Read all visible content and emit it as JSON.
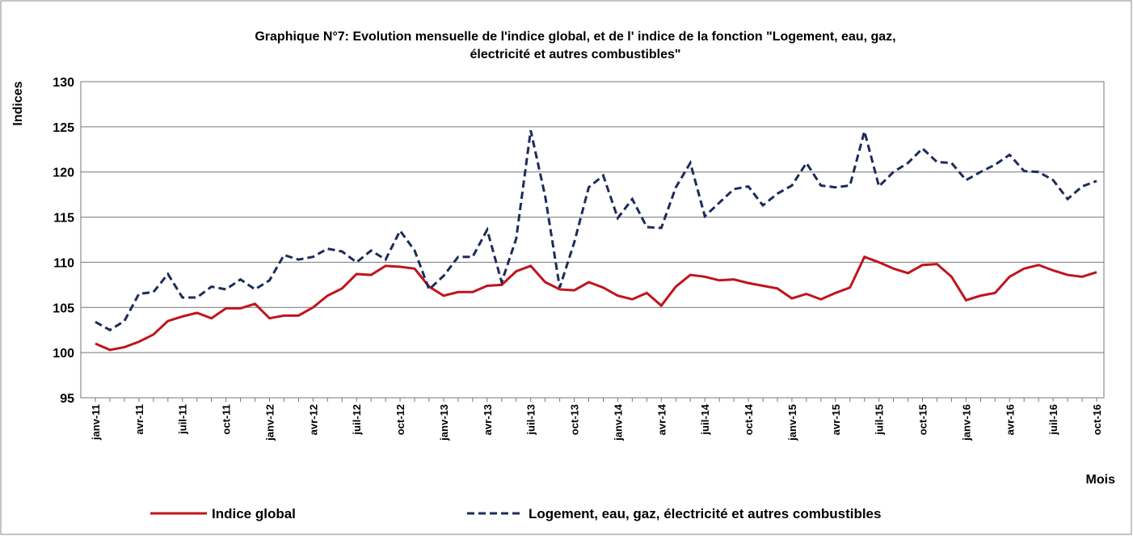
{
  "chart_data": {
    "type": "line",
    "title": "Graphique N°7: Evolution  mensuelle de l'indice global,  et de l' indice de la  fonction \"Logement, eau, gaz,",
    "subtitle": "électricité et autres combustibles\"",
    "y_label": "Indices",
    "x_label": "Mois",
    "categories": [
      "janv-11",
      null,
      null,
      "avr-11",
      null,
      null,
      "juil-11",
      null,
      null,
      "oct-11",
      null,
      null,
      "janv-12",
      null,
      null,
      "avr-12",
      null,
      null,
      "juil-12",
      null,
      null,
      "oct-12",
      null,
      null,
      "janv-13",
      null,
      null,
      "avr-13",
      null,
      null,
      "juil-13",
      null,
      null,
      "oct-13",
      null,
      null,
      "janv-14",
      null,
      null,
      "avr-14",
      null,
      null,
      "juil-14",
      null,
      null,
      "oct-14",
      null,
      null,
      "janv-15",
      null,
      null,
      "avr-15",
      null,
      null,
      "juil-15",
      null,
      null,
      "oct-15",
      null,
      null,
      "janv-16",
      null,
      null,
      "avr-16",
      null,
      null,
      "juil-16",
      null,
      null,
      "oct-16"
    ],
    "series": [
      {
        "name": "Indice global",
        "color": "#c0141c",
        "dashed": false,
        "values": [
          101.0,
          100.3,
          100.6,
          101.2,
          102.0,
          103.5,
          104.0,
          104.4,
          103.8,
          104.9,
          104.9,
          105.4,
          103.8,
          104.1,
          104.1,
          105.0,
          106.3,
          107.1,
          108.7,
          108.6,
          109.6,
          109.5,
          109.3,
          107.3,
          106.3,
          106.7,
          106.7,
          107.4,
          107.5,
          109.0,
          109.6,
          107.8,
          107.0,
          106.9,
          107.8,
          107.2,
          106.3,
          105.9,
          106.6,
          105.2,
          107.3,
          108.6,
          108.4,
          108.0,
          108.1,
          107.7,
          107.4,
          107.1,
          106.0,
          106.5,
          105.9,
          106.6,
          107.2,
          110.6,
          110.0,
          109.3,
          108.8,
          109.7,
          109.8,
          108.4,
          105.8,
          106.3,
          106.6,
          108.4,
          109.3,
          109.7,
          109.1,
          108.6,
          108.4,
          108.9
        ]
      },
      {
        "name": "Logement, eau, gaz, électricité et autres combustibles",
        "color": "#1c2b5a",
        "dashed": true,
        "values": [
          103.4,
          102.5,
          103.5,
          106.5,
          106.7,
          108.7,
          106.1,
          106.1,
          107.3,
          107.0,
          108.1,
          107.0,
          108.0,
          110.8,
          110.3,
          110.6,
          111.5,
          111.2,
          110.0,
          111.3,
          110.3,
          113.5,
          111.3,
          107.0,
          108.5,
          110.6,
          110.6,
          113.6,
          107.8,
          112.6,
          124.6,
          117.3,
          107.2,
          112.2,
          118.3,
          119.6,
          114.9,
          117.0,
          113.9,
          113.8,
          118.3,
          121.0,
          115.1,
          116.6,
          118.1,
          118.4,
          116.3,
          117.6,
          118.5,
          121.0,
          118.5,
          118.3,
          118.5,
          124.5,
          118.4,
          120.0,
          121.0,
          122.6,
          121.1,
          121.0,
          119.1,
          120.0,
          120.8,
          121.9,
          120.1,
          120.0,
          119.1,
          117.0,
          118.4,
          119.0
        ]
      }
    ],
    "ylim": [
      95,
      130
    ],
    "yticks": [
      95,
      100,
      105,
      110,
      115,
      120,
      125,
      130
    ],
    "grid": true,
    "legend": "bottom"
  }
}
